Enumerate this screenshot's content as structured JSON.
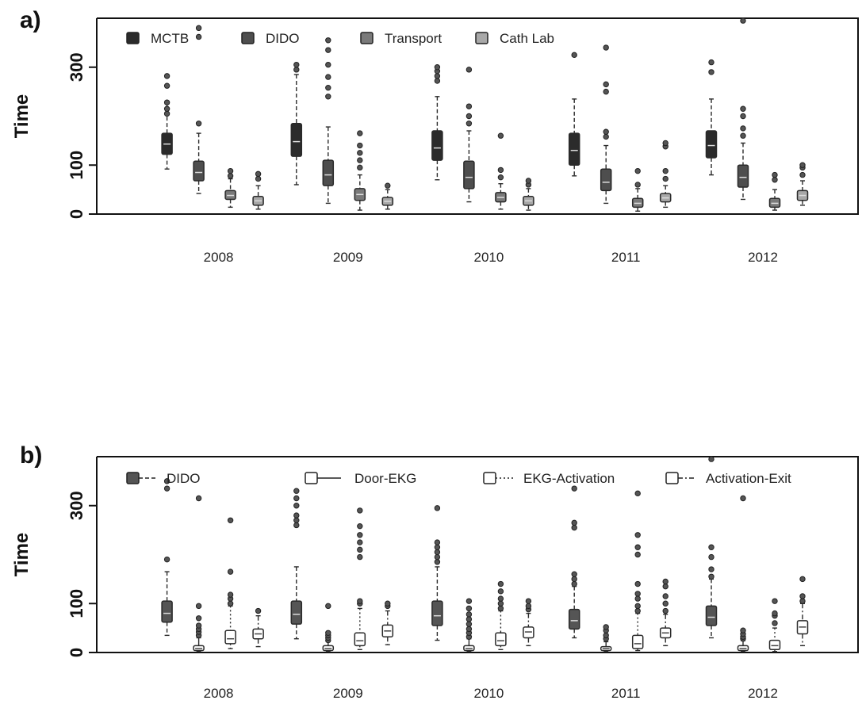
{
  "chart_data": [
    {
      "panel": "a)",
      "type": "box",
      "ylabel": "Time",
      "ylim": [
        0,
        400
      ],
      "yticks": [
        0,
        100,
        300
      ],
      "groups": [
        "2008",
        "2009",
        "2010",
        "2011",
        "2012"
      ],
      "series": [
        {
          "name": "MCTB",
          "color": "#2b2b2b",
          "legend_symbol": "box-filled"
        },
        {
          "name": "DIDO",
          "color": "#4e4e4e",
          "legend_symbol": "box-filled"
        },
        {
          "name": "Transport",
          "color": "#7a7a7a",
          "legend_symbol": "box-filled"
        },
        {
          "name": "Cath Lab",
          "color": "#a8a8a8",
          "legend_symbol": "box-filled"
        }
      ],
      "boxes": [
        [
          {
            "min": 92,
            "q1": 122,
            "med": 143,
            "q3": 165,
            "max": 225,
            "out": [
              205,
              215,
              228,
              262,
              282
            ]
          },
          {
            "min": 42,
            "q1": 68,
            "med": 85,
            "q3": 108,
            "max": 165,
            "out": [
              185,
              362,
              380
            ]
          },
          {
            "min": 14,
            "q1": 30,
            "med": 38,
            "q3": 48,
            "max": 72,
            "out": [
              78,
              88
            ]
          },
          {
            "min": 10,
            "q1": 18,
            "med": 27,
            "q3": 36,
            "max": 58,
            "out": [
              72,
              82
            ]
          }
        ],
        [
          {
            "min": 60,
            "q1": 118,
            "med": 148,
            "q3": 185,
            "max": 285,
            "out": [
              295,
              305
            ]
          },
          {
            "min": 22,
            "q1": 58,
            "med": 80,
            "q3": 110,
            "max": 178,
            "out": [
              240,
              258,
              280,
              305,
              335,
              355
            ]
          },
          {
            "min": 8,
            "q1": 28,
            "med": 40,
            "q3": 52,
            "max": 80,
            "out": [
              95,
              110,
              125,
              140,
              165
            ]
          },
          {
            "min": 10,
            "q1": 18,
            "med": 26,
            "q3": 34,
            "max": 50,
            "out": [
              58
            ]
          }
        ],
        [
          {
            "min": 70,
            "q1": 110,
            "med": 135,
            "q3": 170,
            "max": 240,
            "out": [
              272,
              282,
              292,
              300
            ]
          },
          {
            "min": 25,
            "q1": 52,
            "med": 75,
            "q3": 108,
            "max": 170,
            "out": [
              185,
              200,
              220,
              295
            ]
          },
          {
            "min": 10,
            "q1": 25,
            "med": 34,
            "q3": 44,
            "max": 62,
            "out": [
              75,
              90,
              160
            ]
          },
          {
            "min": 8,
            "q1": 18,
            "med": 27,
            "q3": 36,
            "max": 52,
            "out": [
              60,
              68
            ]
          }
        ],
        [
          {
            "min": 78,
            "q1": 100,
            "med": 130,
            "q3": 165,
            "max": 235,
            "out": [
              325
            ]
          },
          {
            "min": 22,
            "q1": 48,
            "med": 65,
            "q3": 92,
            "max": 140,
            "out": [
              158,
              168,
              250,
              265,
              340
            ]
          },
          {
            "min": 6,
            "q1": 14,
            "med": 22,
            "q3": 32,
            "max": 52,
            "out": [
              60,
              88
            ]
          },
          {
            "min": 14,
            "q1": 25,
            "med": 33,
            "q3": 42,
            "max": 58,
            "out": [
              72,
              88,
              138,
              145
            ]
          }
        ],
        [
          {
            "min": 80,
            "q1": 115,
            "med": 140,
            "q3": 170,
            "max": 235,
            "out": [
              290,
              310
            ]
          },
          {
            "min": 30,
            "q1": 55,
            "med": 75,
            "q3": 100,
            "max": 145,
            "out": [
              160,
              175,
              200,
              215,
              395
            ]
          },
          {
            "min": 8,
            "q1": 14,
            "med": 22,
            "q3": 32,
            "max": 50,
            "out": [
              70,
              80
            ]
          },
          {
            "min": 18,
            "q1": 28,
            "med": 38,
            "q3": 48,
            "max": 68,
            "out": [
              80,
              95,
              100
            ]
          }
        ]
      ]
    },
    {
      "panel": "b)",
      "type": "box",
      "ylabel": "Time",
      "ylim": [
        0,
        400
      ],
      "yticks": [
        0,
        100,
        300
      ],
      "groups": [
        "2008",
        "2009",
        "2010",
        "2011",
        "2012"
      ],
      "series": [
        {
          "name": "DIDO",
          "color": "#555555",
          "legend_symbol": "box-filled",
          "line": "dashed"
        },
        {
          "name": "Door-EKG",
          "color": "#ffffff",
          "legend_symbol": "box-open",
          "line": "solid"
        },
        {
          "name": "EKG-Activation",
          "color": "#ffffff",
          "legend_symbol": "box-open",
          "line": "dotted"
        },
        {
          "name": "Activation-Exit",
          "color": "#ffffff",
          "legend_symbol": "box-open",
          "line": "dotdash"
        }
      ],
      "legend_labels": [
        "DIDO",
        "Door-EKG",
        "EKG-Activation",
        "Activation-Exit"
      ],
      "boxes": [
        [
          {
            "min": 35,
            "q1": 62,
            "med": 80,
            "q3": 105,
            "max": 165,
            "out": [
              190,
              335,
              350
            ]
          },
          {
            "min": 2,
            "q1": 4,
            "med": 8,
            "q3": 14,
            "max": 30,
            "out": [
              35,
              42,
              48,
              55,
              70,
              95,
              315
            ]
          },
          {
            "min": 8,
            "q1": 18,
            "med": 28,
            "q3": 45,
            "max": 95,
            "out": [
              100,
              110,
              118,
              165,
              270
            ]
          },
          {
            "min": 12,
            "q1": 28,
            "med": 38,
            "q3": 48,
            "max": 75,
            "out": [
              85
            ]
          }
        ],
        [
          {
            "min": 28,
            "q1": 58,
            "med": 78,
            "q3": 105,
            "max": 175,
            "out": [
              260,
              270,
              280,
              300,
              315,
              330
            ]
          },
          {
            "min": 2,
            "q1": 4,
            "med": 8,
            "q3": 14,
            "max": 22,
            "out": [
              25,
              30,
              35,
              40,
              95
            ]
          },
          {
            "min": 6,
            "q1": 14,
            "med": 24,
            "q3": 40,
            "max": 90,
            "out": [
              100,
              105,
              195,
              210,
              225,
              240,
              258,
              290
            ]
          },
          {
            "min": 16,
            "q1": 32,
            "med": 44,
            "q3": 56,
            "max": 85,
            "out": [
              95,
              100
            ]
          }
        ],
        [
          {
            "min": 25,
            "q1": 55,
            "med": 75,
            "q3": 105,
            "max": 175,
            "out": [
              185,
              195,
              205,
              215,
              225,
              295
            ]
          },
          {
            "min": 2,
            "q1": 4,
            "med": 8,
            "q3": 14,
            "max": 28,
            "out": [
              32,
              40,
              48,
              58,
              68,
              78,
              90,
              105
            ]
          },
          {
            "min": 6,
            "q1": 14,
            "med": 24,
            "q3": 40,
            "max": 85,
            "out": [
              90,
              100,
              110,
              125,
              140
            ]
          },
          {
            "min": 14,
            "q1": 30,
            "med": 42,
            "q3": 52,
            "max": 80,
            "out": [
              88,
              95,
              105
            ]
          }
        ],
        [
          {
            "min": 30,
            "q1": 48,
            "med": 65,
            "q3": 88,
            "max": 135,
            "out": [
              140,
              150,
              160,
              255,
              265,
              335
            ]
          },
          {
            "min": 2,
            "q1": 4,
            "med": 8,
            "q3": 12,
            "max": 22,
            "out": [
              28,
              35,
              45,
              52
            ]
          },
          {
            "min": 4,
            "q1": 8,
            "med": 18,
            "q3": 35,
            "max": 80,
            "out": [
              85,
              95,
              110,
              120,
              140,
              200,
              215,
              240,
              325
            ]
          },
          {
            "min": 14,
            "q1": 30,
            "med": 40,
            "q3": 50,
            "max": 78,
            "out": [
              85,
              100,
              115,
              135,
              145
            ]
          }
        ],
        [
          {
            "min": 30,
            "q1": 55,
            "med": 72,
            "q3": 95,
            "max": 150,
            "out": [
              155,
              170,
              195,
              215,
              395
            ]
          },
          {
            "min": 2,
            "q1": 4,
            "med": 8,
            "q3": 14,
            "max": 24,
            "out": [
              28,
              32,
              38,
              45,
              315
            ]
          },
          {
            "min": 2,
            "q1": 6,
            "med": 14,
            "q3": 25,
            "max": 50,
            "out": [
              60,
              75,
              80,
              105
            ]
          },
          {
            "min": 14,
            "q1": 38,
            "med": 52,
            "q3": 65,
            "max": 100,
            "out": [
              105,
              115,
              150
            ]
          }
        ]
      ]
    }
  ]
}
